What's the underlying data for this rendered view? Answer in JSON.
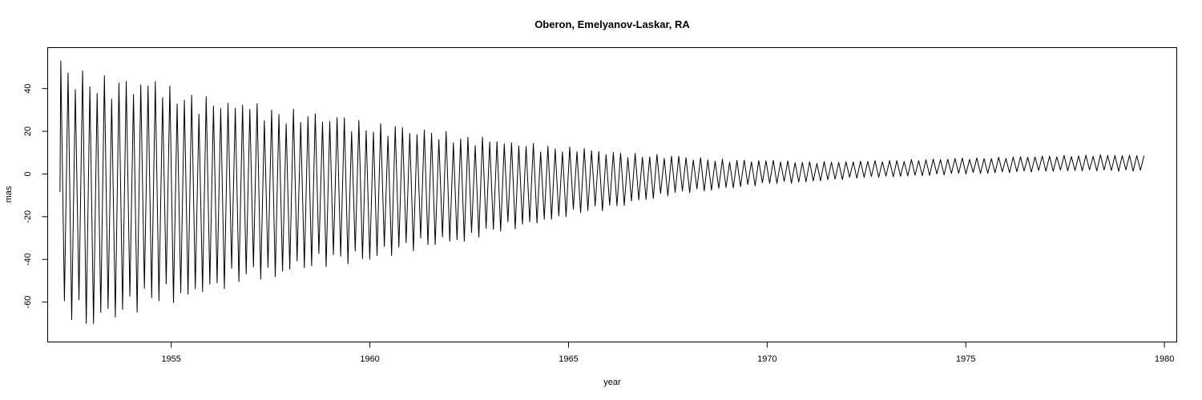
{
  "chart_data": {
    "type": "line",
    "title": "Oberon, Emelyanov-Laskar, RA",
    "xlabel": "year",
    "ylabel": "mas",
    "xlim": [
      1951.9,
      1980.3
    ],
    "ylim": [
      -78.5,
      59
    ],
    "x_ticks": [
      1955,
      1960,
      1965,
      1970,
      1975,
      1980
    ],
    "x_tick_labels": [
      "1955",
      "1960",
      "1965",
      "1970",
      "1975",
      "1980"
    ],
    "y_ticks": [
      -60,
      -40,
      -20,
      0,
      20,
      40
    ],
    "y_tick_labels": [
      "-60",
      "-40",
      "-20",
      "0",
      "20",
      "40"
    ],
    "grid": false,
    "legend": "none",
    "color": "#000000",
    "series": [
      {
        "x_range": [
          1952.2,
          1979.5
        ],
        "start_value": -8.5,
        "first_peak": 53,
        "cycle_years": 0.183,
        "envelope_upper": [
          [
            1952.2,
            50
          ],
          [
            1953,
            48
          ],
          [
            1954,
            46
          ],
          [
            1955,
            42
          ],
          [
            1956,
            37
          ],
          [
            1957,
            34
          ],
          [
            1958,
            31
          ],
          [
            1959,
            28
          ],
          [
            1960,
            25
          ],
          [
            1961,
            22
          ],
          [
            1962,
            20
          ],
          [
            1963,
            17
          ],
          [
            1964,
            15
          ],
          [
            1965,
            13
          ],
          [
            1966,
            11
          ],
          [
            1967,
            9.5
          ],
          [
            1968,
            8
          ],
          [
            1969,
            7
          ],
          [
            1970,
            6.5
          ],
          [
            1971,
            6
          ],
          [
            1972,
            6
          ],
          [
            1973,
            6.5
          ],
          [
            1974,
            7
          ],
          [
            1975,
            7.5
          ],
          [
            1976,
            8
          ],
          [
            1977,
            8.5
          ],
          [
            1978,
            9
          ],
          [
            1979,
            9
          ],
          [
            1979.5,
            9
          ]
        ],
        "envelope_lower": [
          [
            1952.2,
            -68
          ],
          [
            1953,
            -72
          ],
          [
            1954,
            -66
          ],
          [
            1955,
            -61
          ],
          [
            1956,
            -57
          ],
          [
            1957,
            -51
          ],
          [
            1958,
            -47
          ],
          [
            1959,
            -44
          ],
          [
            1960,
            -40
          ],
          [
            1961,
            -37
          ],
          [
            1962,
            -33
          ],
          [
            1963,
            -29
          ],
          [
            1964,
            -25
          ],
          [
            1965,
            -20
          ],
          [
            1966,
            -17
          ],
          [
            1967,
            -12
          ],
          [
            1968,
            -9
          ],
          [
            1969,
            -7
          ],
          [
            1970,
            -5
          ],
          [
            1971,
            -4
          ],
          [
            1972,
            -2.5
          ],
          [
            1973,
            -1.5
          ],
          [
            1974,
            -1
          ],
          [
            1975,
            0
          ],
          [
            1976,
            0.5
          ],
          [
            1977,
            1
          ],
          [
            1978,
            1.5
          ],
          [
            1979,
            1
          ],
          [
            1979.5,
            1.5
          ]
        ]
      }
    ]
  }
}
